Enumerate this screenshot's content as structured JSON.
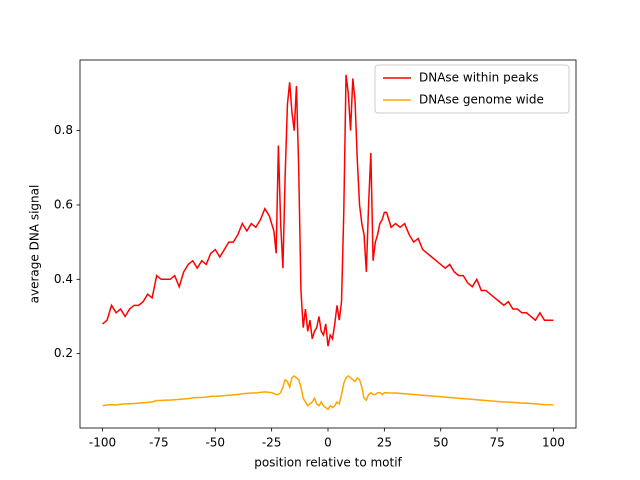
{
  "chart_data": {
    "type": "line",
    "xlabel": "position relative to motif",
    "ylabel": "average DNA signal",
    "x": [
      -100,
      -98,
      -96,
      -94,
      -92,
      -90,
      -88,
      -86,
      -84,
      -82,
      -80,
      -78,
      -76,
      -74,
      -72,
      -70,
      -68,
      -66,
      -64,
      -62,
      -60,
      -58,
      -56,
      -54,
      -52,
      -50,
      -48,
      -46,
      -44,
      -42,
      -40,
      -38,
      -36,
      -34,
      -32,
      -30,
      -28,
      -26,
      -25,
      -24,
      -23,
      -22,
      -21,
      -20,
      -19,
      -18,
      -17,
      -16,
      -15,
      -14,
      -13,
      -12,
      -11,
      -10,
      -9,
      -8,
      -7,
      -6,
      -5,
      -4,
      -3,
      -2,
      -1,
      0,
      1,
      2,
      3,
      4,
      5,
      6,
      7,
      8,
      9,
      10,
      11,
      12,
      13,
      14,
      15,
      16,
      17,
      18,
      19,
      20,
      21,
      22,
      23,
      24,
      25,
      26,
      28,
      30,
      32,
      34,
      36,
      38,
      40,
      42,
      44,
      46,
      48,
      50,
      52,
      54,
      56,
      58,
      60,
      62,
      64,
      66,
      68,
      70,
      72,
      74,
      76,
      78,
      80,
      82,
      84,
      86,
      88,
      90,
      92,
      94,
      96,
      98,
      100
    ],
    "series": [
      {
        "name": "DNAse within peaks",
        "color": "#ff0000",
        "values": [
          0.28,
          0.29,
          0.33,
          0.31,
          0.32,
          0.3,
          0.32,
          0.33,
          0.33,
          0.34,
          0.36,
          0.35,
          0.41,
          0.4,
          0.4,
          0.4,
          0.41,
          0.38,
          0.42,
          0.44,
          0.45,
          0.43,
          0.45,
          0.44,
          0.47,
          0.48,
          0.46,
          0.48,
          0.5,
          0.5,
          0.52,
          0.55,
          0.53,
          0.55,
          0.54,
          0.56,
          0.59,
          0.57,
          0.55,
          0.53,
          0.47,
          0.76,
          0.55,
          0.43,
          0.68,
          0.87,
          0.93,
          0.85,
          0.8,
          0.92,
          0.7,
          0.37,
          0.27,
          0.32,
          0.26,
          0.29,
          0.24,
          0.26,
          0.27,
          0.3,
          0.26,
          0.25,
          0.28,
          0.22,
          0.25,
          0.24,
          0.28,
          0.33,
          0.29,
          0.34,
          0.58,
          0.95,
          0.9,
          0.8,
          0.94,
          0.88,
          0.72,
          0.6,
          0.55,
          0.52,
          0.42,
          0.6,
          0.74,
          0.45,
          0.5,
          0.52,
          0.55,
          0.56,
          0.58,
          0.58,
          0.54,
          0.55,
          0.54,
          0.55,
          0.52,
          0.5,
          0.51,
          0.48,
          0.47,
          0.46,
          0.45,
          0.44,
          0.43,
          0.44,
          0.42,
          0.41,
          0.41,
          0.39,
          0.38,
          0.4,
          0.37,
          0.37,
          0.36,
          0.35,
          0.34,
          0.33,
          0.34,
          0.32,
          0.32,
          0.31,
          0.31,
          0.3,
          0.29,
          0.31,
          0.29,
          0.29,
          0.29
        ]
      },
      {
        "name": "DNAse genome wide",
        "color": "#ffa500",
        "values": [
          0.06,
          0.062,
          0.063,
          0.062,
          0.064,
          0.065,
          0.065,
          0.066,
          0.067,
          0.068,
          0.069,
          0.07,
          0.074,
          0.074,
          0.075,
          0.075,
          0.076,
          0.077,
          0.078,
          0.079,
          0.081,
          0.082,
          0.082,
          0.083,
          0.085,
          0.085,
          0.086,
          0.087,
          0.088,
          0.089,
          0.09,
          0.092,
          0.093,
          0.094,
          0.094,
          0.096,
          0.097,
          0.096,
          0.095,
          0.093,
          0.09,
          0.09,
          0.095,
          0.11,
          0.13,
          0.125,
          0.11,
          0.135,
          0.14,
          0.135,
          0.13,
          0.11,
          0.08,
          0.07,
          0.06,
          0.065,
          0.07,
          0.08,
          0.065,
          0.06,
          0.07,
          0.06,
          0.055,
          0.05,
          0.06,
          0.055,
          0.06,
          0.07,
          0.065,
          0.09,
          0.12,
          0.135,
          0.14,
          0.135,
          0.13,
          0.125,
          0.135,
          0.13,
          0.11,
          0.08,
          0.075,
          0.09,
          0.095,
          0.09,
          0.09,
          0.095,
          0.095,
          0.09,
          0.095,
          0.095,
          0.094,
          0.094,
          0.093,
          0.092,
          0.091,
          0.09,
          0.089,
          0.088,
          0.087,
          0.086,
          0.085,
          0.084,
          0.083,
          0.082,
          0.081,
          0.08,
          0.079,
          0.078,
          0.077,
          0.076,
          0.075,
          0.074,
          0.073,
          0.072,
          0.071,
          0.07,
          0.07,
          0.069,
          0.068,
          0.067,
          0.067,
          0.066,
          0.065,
          0.064,
          0.063,
          0.063,
          0.062
        ]
      }
    ],
    "xlim": [
      -110,
      110
    ],
    "xticks": [
      -100,
      -75,
      -50,
      -25,
      0,
      25,
      50,
      75,
      100
    ],
    "ylim": [
      0.0,
      0.99
    ],
    "yticks": [
      0.2,
      0.4,
      0.6,
      0.8
    ],
    "grid": false,
    "legend": "upper right"
  }
}
